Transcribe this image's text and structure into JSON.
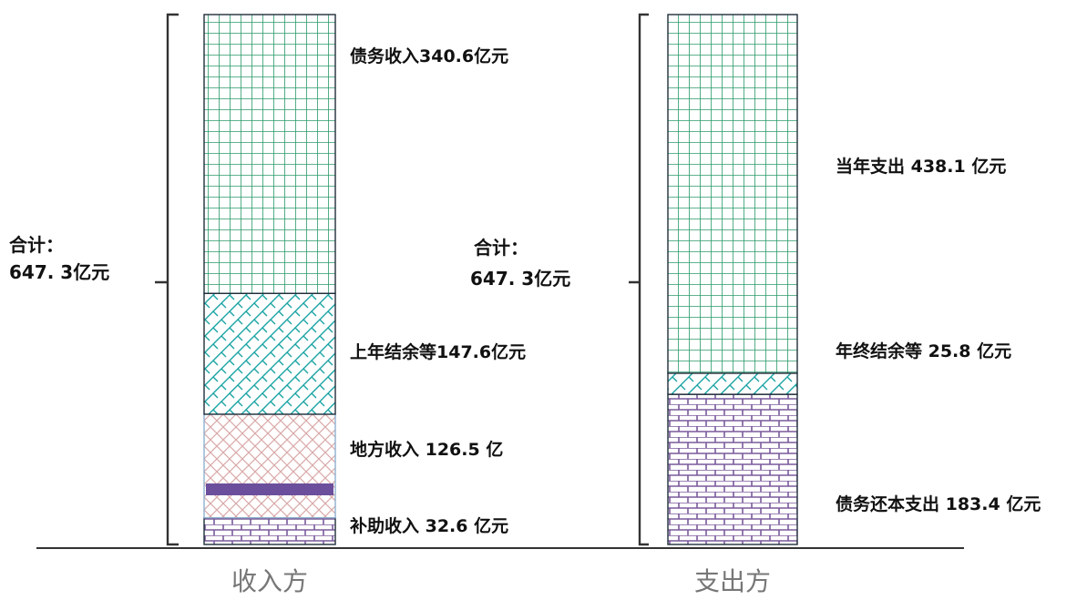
{
  "chart_data": {
    "type": "bar",
    "categories": [
      "收入方",
      "支出方"
    ],
    "stacked": true,
    "total_label": "合计：",
    "total_value": "647.3亿元",
    "columns": [
      {
        "name": "收入方",
        "total": 647.3,
        "segments": [
          {
            "label": "补助收入 32.6 亿元",
            "value": 32.6,
            "pattern": "brick",
            "color": "#7a5a9c"
          },
          {
            "label": "地方收入 126.5 亿",
            "value": 126.5,
            "pattern": "diamond",
            "color": "#d9a9a9"
          },
          {
            "label": "上年结余等147.6亿元",
            "value": 147.6,
            "pattern": "weave",
            "color": "#1aa3a3"
          },
          {
            "label": "债务收入340.6亿元",
            "value": 340.6,
            "pattern": "grid",
            "color": "#2a9a6a"
          }
        ]
      },
      {
        "name": "支出方",
        "total": 647.3,
        "segments": [
          {
            "label": "债务还本支出 183.4 亿元",
            "value": 183.4,
            "pattern": "brick",
            "color": "#7a5a9c"
          },
          {
            "label": "年终结余等 25.8 亿元",
            "value": 25.8,
            "pattern": "weave",
            "color": "#1aa3a3"
          },
          {
            "label": "当年支出 438.1 亿元",
            "value": 438.1,
            "pattern": "grid",
            "color": "#2a9a6a"
          }
        ]
      }
    ],
    "left_total_text": [
      "合计：",
      "647. 3亿元"
    ],
    "middle_total_text": [
      "合计：",
      "647. 3亿元"
    ]
  }
}
